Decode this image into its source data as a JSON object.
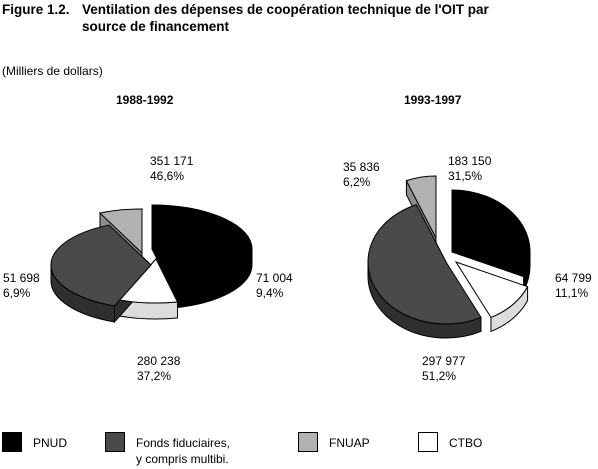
{
  "figure": {
    "number": "Figure 1.2.",
    "title": "Ventilation des dépenses de coopération technique de l'OIT par source de financement",
    "units": "(Milliers de dollars)"
  },
  "colors": {
    "PNUD": "#000000",
    "Fonds": "#4a4a4a",
    "FNUAP": "#b2b2b2",
    "CTBO": "#ffffff"
  },
  "chart_data": [
    {
      "type": "pie",
      "title": "1988-1992",
      "slices": [
        {
          "key": "PNUD",
          "value_label": "351 171",
          "pct_label": "46,6%",
          "value": 351171,
          "pct": 46.6
        },
        {
          "key": "CTBO",
          "value_label": "71 004",
          "pct_label": "9,4%",
          "value": 71004,
          "pct": 9.4
        },
        {
          "key": "Fonds",
          "value_label": "280 238",
          "pct_label": "37,2%",
          "value": 280238,
          "pct": 37.2
        },
        {
          "key": "FNUAP",
          "value_label": "51 698",
          "pct_label": "6,9%",
          "value": 51698,
          "pct": 6.9
        }
      ]
    },
    {
      "type": "pie",
      "title": "1993-1997",
      "slices": [
        {
          "key": "PNUD",
          "value_label": "183 150",
          "pct_label": "31,5%",
          "value": 183150,
          "pct": 31.5
        },
        {
          "key": "CTBO",
          "value_label": "64 799",
          "pct_label": "11,1%",
          "value": 64799,
          "pct": 11.1
        },
        {
          "key": "Fonds",
          "value_label": "297 977",
          "pct_label": "51,2%",
          "value": 297977,
          "pct": 51.2
        },
        {
          "key": "FNUAP",
          "value_label": "35 836",
          "pct_label": "6,2%",
          "value": 35836,
          "pct": 6.2
        }
      ]
    }
  ],
  "legend": [
    {
      "key": "PNUD",
      "label": "PNUD",
      "label2": ""
    },
    {
      "key": "Fonds",
      "label": "Fonds fiduciaires,",
      "label2": "y compris multibi."
    },
    {
      "key": "FNUAP",
      "label": "FNUAP",
      "label2": ""
    },
    {
      "key": "CTBO",
      "label": "CTBO",
      "label2": ""
    }
  ]
}
